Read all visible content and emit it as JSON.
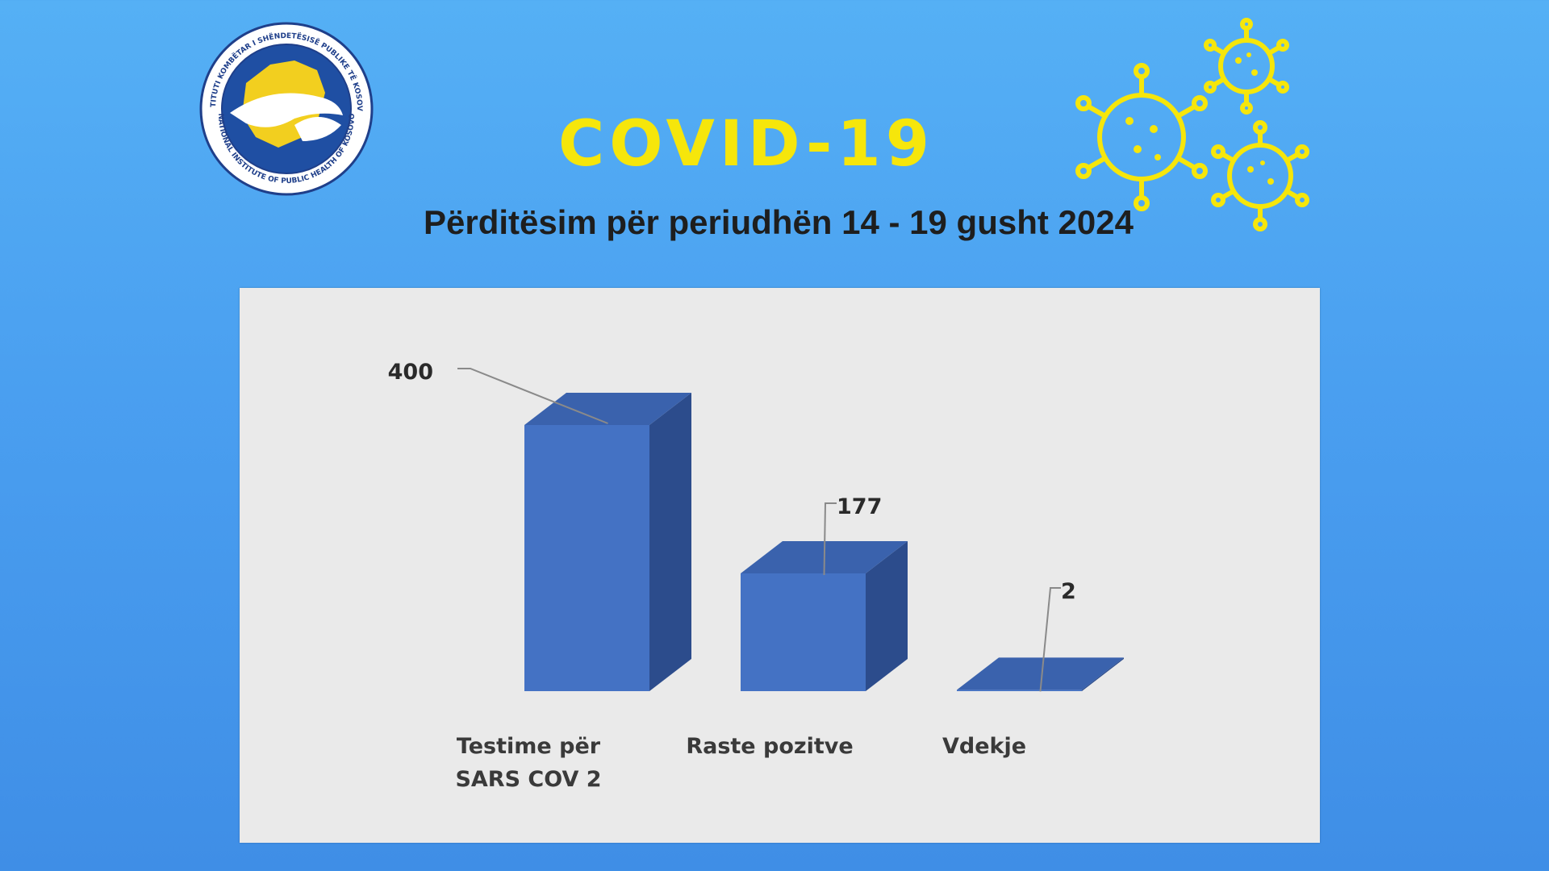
{
  "header": {
    "title": "COVID-19",
    "subtitle": "Përditësim për periudhën 14 - 19 gusht 2024"
  },
  "logo": {
    "icon": "institute-seal-logo",
    "ring_text_top": "INSTITUTI KOMBËTAR I SHËNDETËSISË PUBLIKE TË KOSOVËS",
    "ring_text_bottom": "NATIONAL INSTITUTE OF PUBLIC HEALTH OF KOSOVO"
  },
  "decoration": {
    "icon": "virus-icons",
    "color": "#f6e60b"
  },
  "colors": {
    "bar_front": "#4472c4",
    "bar_top": "#3a62ad",
    "bar_side": "#2c4c8c",
    "title": "#f6e60b",
    "background": "#4a9ff0",
    "panel": "#eaeaea"
  },
  "chart_data": {
    "type": "bar",
    "style": "3d-column",
    "categories": [
      "Testime për SARS COV 2",
      "Raste pozitve",
      "Vdekje"
    ],
    "values": [
      400,
      177,
      2
    ],
    "data_labels": [
      "400",
      "177",
      "2"
    ],
    "ylim": [
      0,
      400
    ],
    "grid": false,
    "legend": false
  }
}
